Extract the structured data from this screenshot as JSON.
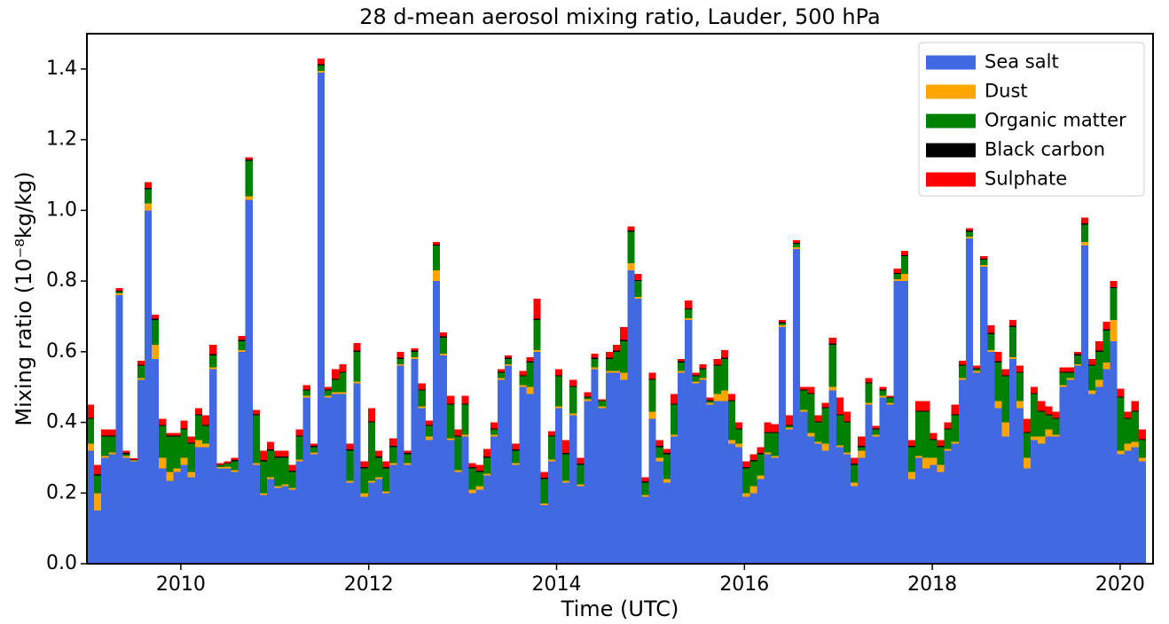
{
  "chart_data": {
    "type": "bar",
    "stacked": true,
    "title": "28 d-mean aerosol mixing ratio, Lauder, 500 hPa",
    "x_label": "Time (UTC)",
    "y_label": "Mixing ratio (10⁻⁸kg/kg)",
    "xlim": [
      2009.0,
      2020.35
    ],
    "xticks": [
      2010,
      2012,
      2014,
      2016,
      2018,
      2020
    ],
    "ylim": [
      0,
      1.5
    ],
    "yticks": [
      {
        "value": 0,
        "label": "0.0"
      },
      0.2,
      0.4,
      0.6,
      0.8,
      {
        "value": 1,
        "label": "1.0"
      },
      1.2,
      1.4
    ],
    "legend": "upper right",
    "x": [
      2009.0,
      2009.077,
      2009.153,
      2009.23,
      2009.307,
      2009.384,
      2009.46,
      2009.537,
      2009.614,
      2009.69,
      2009.767,
      2009.844,
      2009.92,
      2009.997,
      2010.074,
      2010.151,
      2010.227,
      2010.304,
      2010.381,
      2010.457,
      2010.534,
      2010.611,
      2010.687,
      2010.764,
      2010.841,
      2010.918,
      2010.994,
      2011.071,
      2011.148,
      2011.224,
      2011.301,
      2011.378,
      2011.454,
      2011.531,
      2011.608,
      2011.685,
      2011.761,
      2011.838,
      2011.915,
      2011.991,
      2012.068,
      2012.145,
      2012.221,
      2012.298,
      2012.375,
      2012.452,
      2012.528,
      2012.605,
      2012.682,
      2012.758,
      2012.835,
      2012.912,
      2012.988,
      2013.065,
      2013.142,
      2013.219,
      2013.295,
      2013.372,
      2013.449,
      2013.525,
      2013.602,
      2013.679,
      2013.755,
      2013.832,
      2013.909,
      2013.986,
      2014.062,
      2014.139,
      2014.216,
      2014.292,
      2014.369,
      2014.446,
      2014.522,
      2014.599,
      2014.676,
      2014.753,
      2014.829,
      2014.906,
      2014.983,
      2015.059,
      2015.136,
      2015.213,
      2015.289,
      2015.366,
      2015.443,
      2015.52,
      2015.596,
      2015.673,
      2015.75,
      2015.826,
      2015.903,
      2015.98,
      2016.056,
      2016.133,
      2016.21,
      2016.287,
      2016.363,
      2016.44,
      2016.517,
      2016.593,
      2016.67,
      2016.747,
      2016.823,
      2016.9,
      2016.977,
      2017.054,
      2017.13,
      2017.207,
      2017.284,
      2017.36,
      2017.437,
      2017.514,
      2017.59,
      2017.667,
      2017.744,
      2017.821,
      2017.897,
      2017.974,
      2018.051,
      2018.127,
      2018.204,
      2018.281,
      2018.357,
      2018.434,
      2018.511,
      2018.588,
      2018.664,
      2018.741,
      2018.818,
      2018.894,
      2018.971,
      2019.048,
      2019.124,
      2019.201,
      2019.278,
      2019.354,
      2019.431,
      2019.508,
      2019.584,
      2019.661,
      2019.738,
      2019.815,
      2019.891,
      2019.968,
      2020.045,
      2020.121,
      2020.198
    ],
    "series": [
      {
        "name": "Sea salt",
        "color": "#4169e1",
        "values": [
          0.32,
          0.15,
          0.3,
          0.31,
          0.76,
          0.3,
          0.29,
          0.52,
          1.0,
          0.58,
          0.27,
          0.235,
          0.26,
          0.28,
          0.245,
          0.33,
          0.33,
          0.55,
          0.27,
          0.27,
          0.26,
          0.6,
          1.03,
          0.28,
          0.195,
          0.24,
          0.215,
          0.22,
          0.21,
          0.29,
          0.47,
          0.31,
          1.39,
          0.47,
          0.48,
          0.48,
          0.23,
          0.51,
          0.19,
          0.23,
          0.24,
          0.2,
          0.28,
          0.56,
          0.28,
          0.58,
          0.44,
          0.35,
          0.8,
          0.59,
          0.35,
          0.26,
          0.36,
          0.2,
          0.21,
          0.25,
          0.36,
          0.52,
          0.56,
          0.28,
          0.5,
          0.48,
          0.6,
          0.165,
          0.29,
          0.44,
          0.23,
          0.42,
          0.22,
          0.46,
          0.55,
          0.44,
          0.54,
          0.54,
          0.52,
          0.83,
          0.75,
          0.19,
          0.41,
          0.29,
          0.23,
          0.36,
          0.54,
          0.69,
          0.51,
          0.52,
          0.45,
          0.46,
          0.46,
          0.34,
          0.33,
          0.19,
          0.2,
          0.24,
          0.31,
          0.3,
          0.67,
          0.38,
          0.89,
          0.43,
          0.36,
          0.34,
          0.32,
          0.49,
          0.33,
          0.31,
          0.22,
          0.3,
          0.45,
          0.36,
          0.47,
          0.45,
          0.8,
          0.8,
          0.24,
          0.3,
          0.27,
          0.28,
          0.26,
          0.32,
          0.34,
          0.52,
          0.92,
          0.54,
          0.84,
          0.6,
          0.44,
          0.36,
          0.58,
          0.44,
          0.27,
          0.35,
          0.34,
          0.36,
          0.36,
          0.5,
          0.52,
          0.56,
          0.9,
          0.48,
          0.5,
          0.55,
          0.63,
          0.31,
          0.32,
          0.33,
          0.29
        ]
      },
      {
        "name": "Dust",
        "color": "#ffa500",
        "values": [
          0.02,
          0.05,
          0.005,
          0.005,
          0.005,
          0.005,
          0.002,
          0.005,
          0.02,
          0.04,
          0.03,
          0.025,
          0.01,
          0.02,
          0.015,
          0.02,
          0.01,
          0.005,
          0.003,
          0.005,
          0.005,
          0.005,
          0.01,
          0.005,
          0.005,
          0.005,
          0.005,
          0.005,
          0.005,
          0.005,
          0.005,
          0.005,
          0.005,
          0.005,
          0.005,
          0.005,
          0.005,
          0.005,
          0.01,
          0.005,
          0.005,
          0.005,
          0.005,
          0.005,
          0.005,
          0.005,
          0.005,
          0.01,
          0.03,
          0.005,
          0.005,
          0.005,
          0.005,
          0.01,
          0.01,
          0.005,
          0.005,
          0.005,
          0.005,
          0.005,
          0.005,
          0.02,
          0.005,
          0.005,
          0.005,
          0.005,
          0.005,
          0.005,
          0.005,
          0.005,
          0.005,
          0.005,
          0.005,
          0.005,
          0.02,
          0.02,
          0.005,
          0.005,
          0.02,
          0.01,
          0.01,
          0.005,
          0.005,
          0.005,
          0.005,
          0.005,
          0.005,
          0.02,
          0.03,
          0.01,
          0.01,
          0.01,
          0.02,
          0.01,
          0.005,
          0.005,
          0.005,
          0.005,
          0.005,
          0.005,
          0.01,
          0.005,
          0.02,
          0.01,
          0.005,
          0.005,
          0.01,
          0.02,
          0.005,
          0.005,
          0.005,
          0.005,
          0.005,
          0.02,
          0.02,
          0.005,
          0.03,
          0.02,
          0.02,
          0.005,
          0.005,
          0.005,
          0.005,
          0.005,
          0.005,
          0.005,
          0.02,
          0.04,
          0.005,
          0.02,
          0.03,
          0.01,
          0.02,
          0.02,
          0.005,
          0.005,
          0.005,
          0.005,
          0.01,
          0.01,
          0.02,
          0.02,
          0.06,
          0.01,
          0.02,
          0.015,
          0.01
        ]
      },
      {
        "name": "Organic matter",
        "color": "#008000",
        "values": [
          0.07,
          0.05,
          0.055,
          0.045,
          0.005,
          0.005,
          0.002,
          0.035,
          0.04,
          0.07,
          0.09,
          0.1,
          0.09,
          0.08,
          0.08,
          0.07,
          0.05,
          0.035,
          0.005,
          0.008,
          0.025,
          0.025,
          0.1,
          0.135,
          0.09,
          0.075,
          0.08,
          0.075,
          0.045,
          0.065,
          0.015,
          0.015,
          0.015,
          0.015,
          0.035,
          0.055,
          0.085,
          0.085,
          0.07,
          0.165,
          0.055,
          0.065,
          0.045,
          0.015,
          0.025,
          0.015,
          0.045,
          0.03,
          0.07,
          0.045,
          0.095,
          0.095,
          0.085,
          0.06,
          0.04,
          0.045,
          0.015,
          0.015,
          0.015,
          0.035,
          0.025,
          0.07,
          0.085,
          0.07,
          0.065,
          0.085,
          0.075,
          0.075,
          0.055,
          0.005,
          0.025,
          0.015,
          0.035,
          0.055,
          0.09,
          0.09,
          0.045,
          0.035,
          0.09,
          0.03,
          0.07,
          0.085,
          0.025,
          0.025,
          0.015,
          0.025,
          0.005,
          0.08,
          0.09,
          0.11,
          0.04,
          0.07,
          0.07,
          0.06,
          0.055,
          0.065,
          0.005,
          0.005,
          0.01,
          0.055,
          0.11,
          0.055,
          0.1,
          0.12,
          0.085,
          0.085,
          0.05,
          0.01,
          0.055,
          0.015,
          0.015,
          0.015,
          0.015,
          0.05,
          0.07,
          0.125,
          0.13,
          0.05,
          0.05,
          0.055,
          0.075,
          0.035,
          0.015,
          0.005,
          0.015,
          0.045,
          0.11,
          0.13,
          0.085,
          0.08,
          0.07,
          0.12,
          0.07,
          0.04,
          0.045,
          0.035,
          0.015,
          0.025,
          0.05,
          0.07,
          0.08,
          0.09,
          0.09,
          0.15,
          0.07,
          0.085,
          0.05
        ]
      },
      {
        "name": "Black carbon",
        "color": "#000000",
        "values": [
          0.003,
          0.003,
          0.003,
          0.003,
          0.003,
          0.003,
          0.001,
          0.003,
          0.003,
          0.003,
          0.003,
          0.003,
          0.003,
          0.003,
          0.003,
          0.003,
          0.003,
          0.003,
          0.002,
          0.002,
          0.003,
          0.003,
          0.004,
          0.003,
          0.003,
          0.003,
          0.003,
          0.003,
          0.003,
          0.003,
          0.003,
          0.003,
          0.003,
          0.003,
          0.003,
          0.003,
          0.003,
          0.003,
          0.003,
          0.003,
          0.003,
          0.003,
          0.003,
          0.003,
          0.003,
          0.003,
          0.003,
          0.003,
          0.003,
          0.003,
          0.003,
          0.003,
          0.003,
          0.003,
          0.003,
          0.003,
          0.003,
          0.003,
          0.003,
          0.003,
          0.003,
          0.003,
          0.003,
          0.003,
          0.003,
          0.003,
          0.003,
          0.003,
          0.003,
          0.003,
          0.003,
          0.002,
          0.003,
          0.003,
          0.003,
          0.003,
          0.003,
          0.003,
          0.003,
          0.003,
          0.003,
          0.003,
          0.003,
          0.003,
          0.003,
          0.003,
          0.003,
          0.003,
          0.003,
          0.003,
          0.003,
          0.003,
          0.003,
          0.003,
          0.003,
          0.003,
          0.003,
          0.003,
          0.003,
          0.003,
          0.003,
          0.003,
          0.003,
          0.003,
          0.003,
          0.003,
          0.003,
          0.003,
          0.003,
          0.003,
          0.003,
          0.002,
          0.003,
          0.003,
          0.003,
          0.003,
          0.003,
          0.003,
          0.003,
          0.003,
          0.003,
          0.003,
          0.003,
          0.003,
          0.003,
          0.003,
          0.003,
          0.003,
          0.003,
          0.003,
          0.003,
          0.003,
          0.003,
          0.003,
          0.003,
          0.003,
          0.003,
          0.003,
          0.003,
          0.003,
          0.003,
          0.003,
          0.003,
          0.003,
          0.003,
          0.003,
          0.003
        ]
      },
      {
        "name": "Sulphate",
        "color": "#ff0000",
        "values": [
          0.037,
          0.027,
          0.017,
          0.017,
          0.007,
          0.007,
          0.003,
          0.012,
          0.017,
          0.012,
          0.017,
          0.007,
          0.007,
          0.022,
          0.017,
          0.017,
          0.027,
          0.027,
          0.005,
          0.005,
          0.007,
          0.012,
          0.006,
          0.012,
          0.027,
          0.022,
          0.017,
          0.017,
          0.017,
          0.017,
          0.012,
          0.007,
          0.017,
          0.007,
          0.027,
          0.022,
          0.017,
          0.022,
          0.017,
          0.037,
          0.017,
          0.017,
          0.022,
          0.017,
          0.007,
          0.007,
          0.017,
          0.012,
          0.007,
          0.012,
          0.022,
          0.017,
          0.022,
          0.012,
          0.017,
          0.022,
          0.017,
          0.007,
          0.007,
          0.017,
          0.012,
          0.012,
          0.057,
          0.017,
          0.012,
          0.017,
          0.037,
          0.017,
          0.017,
          0.012,
          0.012,
          0.003,
          0.017,
          0.017,
          0.037,
          0.012,
          0.017,
          0.012,
          0.017,
          0.017,
          0.012,
          0.027,
          0.007,
          0.022,
          0.007,
          0.012,
          0.007,
          0.017,
          0.022,
          0.017,
          0.017,
          0.017,
          0.017,
          0.017,
          0.027,
          0.022,
          0.007,
          0.027,
          0.007,
          0.007,
          0.017,
          0.017,
          0.012,
          0.017,
          0.047,
          0.027,
          0.017,
          0.027,
          0.012,
          0.007,
          0.007,
          0.003,
          0.012,
          0.012,
          0.017,
          0.027,
          0.027,
          0.017,
          0.017,
          0.017,
          0.027,
          0.012,
          0.007,
          0.007,
          0.007,
          0.022,
          0.027,
          0.017,
          0.017,
          0.017,
          0.037,
          0.017,
          0.027,
          0.022,
          0.017,
          0.012,
          0.012,
          0.007,
          0.017,
          0.017,
          0.027,
          0.022,
          0.017,
          0.022,
          0.017,
          0.027,
          0.027
        ]
      }
    ]
  }
}
